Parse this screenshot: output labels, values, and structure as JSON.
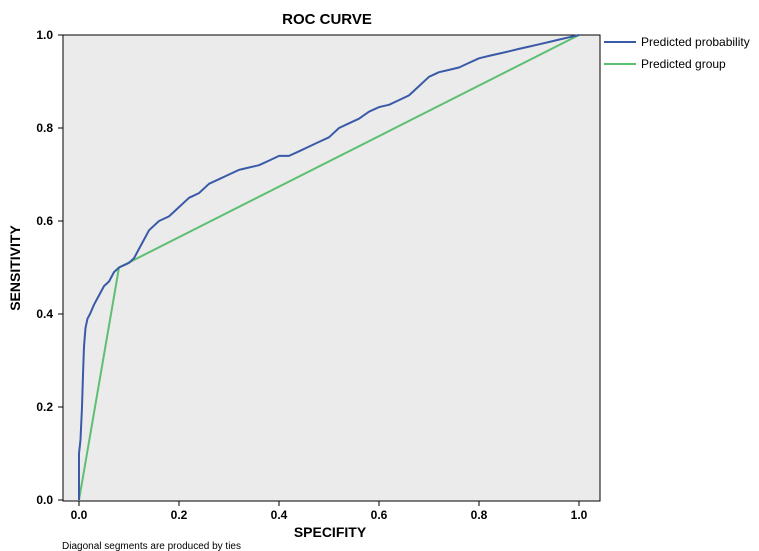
{
  "chart_data": {
    "type": "line",
    "title": "ROC CURVE",
    "xlabel": "SPECIFITY",
    "ylabel": "SENSITIVITY",
    "xlim": [
      0.0,
      1.0
    ],
    "ylim": [
      0.0,
      1.0
    ],
    "xticks": [
      "0.0",
      "0.2",
      "0.4",
      "0.6",
      "0.8",
      "1.0"
    ],
    "yticks": [
      "0.0",
      "0.2",
      "0.4",
      "0.6",
      "0.8",
      "1.0"
    ],
    "grid": false,
    "legend_position": "right",
    "plot_background": "#ebebeb",
    "footnote": "Diagonal segments are produced by ties",
    "series": [
      {
        "name": "Predicted probability",
        "color": "#3a5aa8",
        "x": [
          0.0,
          0.0,
          0.003,
          0.006,
          0.008,
          0.01,
          0.013,
          0.017,
          0.022,
          0.03,
          0.04,
          0.05,
          0.06,
          0.07,
          0.08,
          0.09,
          0.1,
          0.11,
          0.12,
          0.13,
          0.14,
          0.16,
          0.18,
          0.2,
          0.22,
          0.24,
          0.26,
          0.28,
          0.3,
          0.32,
          0.34,
          0.36,
          0.38,
          0.4,
          0.42,
          0.44,
          0.46,
          0.48,
          0.5,
          0.52,
          0.54,
          0.56,
          0.58,
          0.6,
          0.62,
          0.64,
          0.66,
          0.68,
          0.7,
          0.72,
          0.74,
          0.76,
          0.78,
          0.8,
          0.82,
          0.84,
          0.86,
          0.88,
          0.9,
          0.92,
          0.94,
          0.96,
          0.98,
          1.0
        ],
        "y": [
          0.0,
          0.1,
          0.13,
          0.2,
          0.27,
          0.33,
          0.37,
          0.39,
          0.4,
          0.42,
          0.44,
          0.46,
          0.47,
          0.49,
          0.5,
          0.505,
          0.51,
          0.52,
          0.54,
          0.56,
          0.58,
          0.6,
          0.61,
          0.63,
          0.65,
          0.66,
          0.68,
          0.69,
          0.7,
          0.71,
          0.715,
          0.72,
          0.73,
          0.74,
          0.74,
          0.75,
          0.76,
          0.77,
          0.78,
          0.8,
          0.81,
          0.82,
          0.835,
          0.845,
          0.85,
          0.86,
          0.87,
          0.89,
          0.91,
          0.92,
          0.925,
          0.93,
          0.94,
          0.95,
          0.955,
          0.96,
          0.965,
          0.97,
          0.975,
          0.98,
          0.985,
          0.99,
          0.995,
          1.0
        ]
      },
      {
        "name": "Predicted group",
        "color": "#5dbf72",
        "x": [
          0.0,
          0.08,
          1.0
        ],
        "y": [
          0.0,
          0.5,
          1.0
        ]
      }
    ]
  }
}
